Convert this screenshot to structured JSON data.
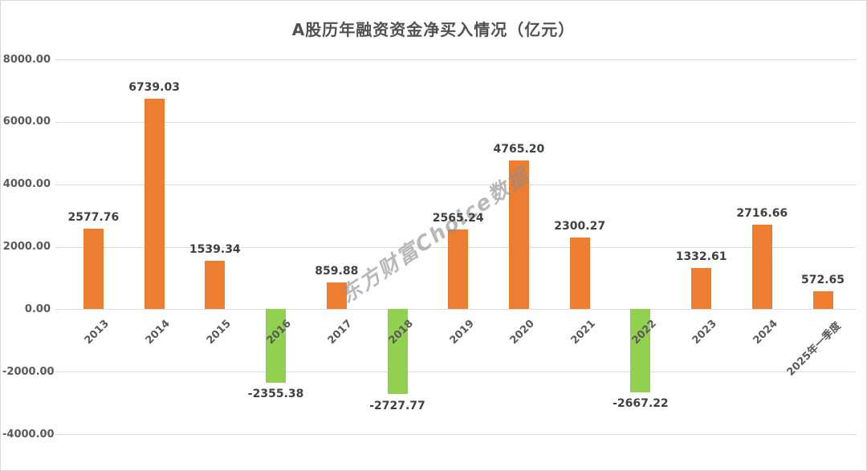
{
  "title": "A股历年融资资金净买入情况（亿元）",
  "watermark": "东方财富Choice数据",
  "colors": {
    "positive_bar": "#ED7D31",
    "negative_bar": "#92D050",
    "gridline": "#DCDCDC",
    "value_label_text": "#404040",
    "axis_tick_text": "#595959",
    "title_text": "#515151",
    "watermark_text": "#8C8C8C",
    "frame_border": "#D8D8D8"
  },
  "chart_data": {
    "type": "bar",
    "title": "A股历年融资资金净买入情况（亿元）",
    "categories": [
      "2013",
      "2014",
      "2015",
      "2016",
      "2017",
      "2018",
      "2019",
      "2020",
      "2021",
      "2022",
      "2023",
      "2024",
      "2025年一季度"
    ],
    "values": [
      2577.76,
      6739.03,
      1539.34,
      -2355.38,
      859.88,
      -2727.77,
      2565.24,
      4765.2,
      2300.27,
      -2667.22,
      1332.61,
      2716.66,
      572.65
    ],
    "value_labels": [
      "2577.76",
      "6739.03",
      "1539.34",
      "-2355.38",
      "859.88",
      "-2727.77",
      "2565.24",
      "4765.20",
      "2300.27",
      "-2667.22",
      "1332.61",
      "2716.66",
      "572.65"
    ],
    "xlabel": "",
    "ylabel": "",
    "ylim": [
      -4000,
      8000
    ],
    "ytick_step": 2000,
    "ytick_labels": [
      "8000.00",
      "6000.00",
      "4000.00",
      "2000.00",
      "0.00",
      "-2000.00",
      "-4000.00"
    ],
    "grid": true,
    "legend": false,
    "color_rule": "positive values orange, negative values green"
  }
}
